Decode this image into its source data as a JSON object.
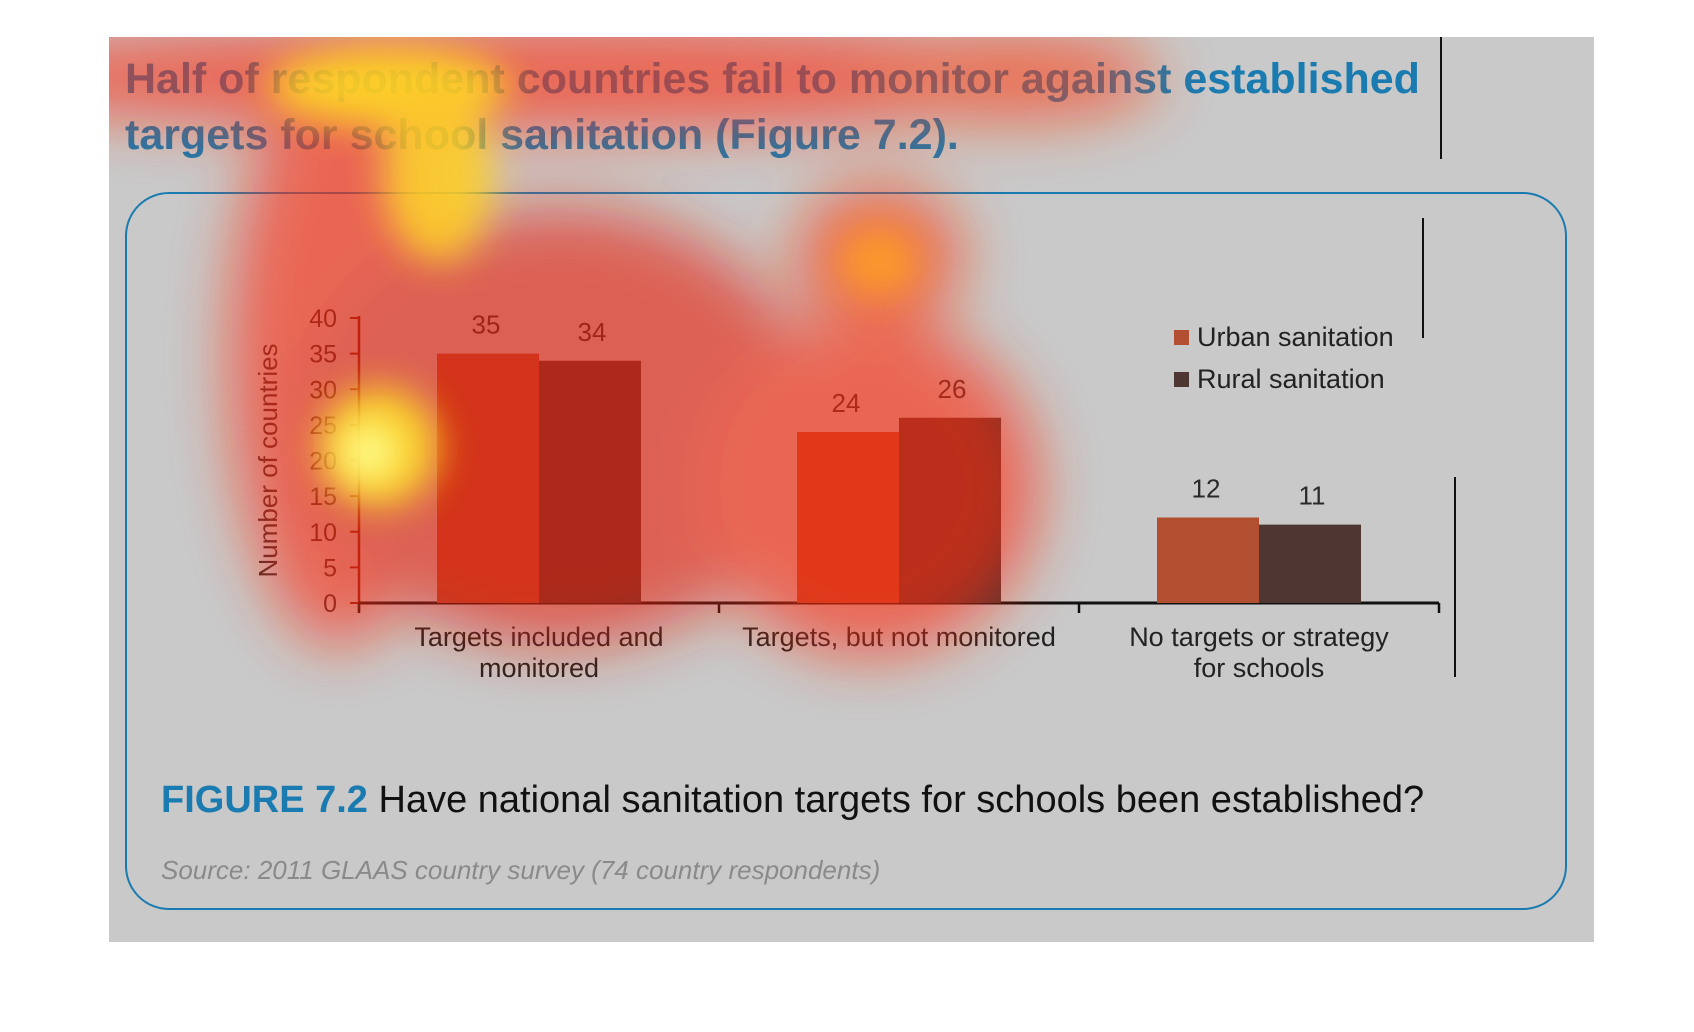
{
  "headline": "Half of respondent countries fail to monitor against established targets for school sanitation (Figure 7.2).",
  "caption": {
    "figure_label": "FIGURE 7.2",
    "text": "Have national sanitation targets for schools been established?"
  },
  "source": "Source: 2011 GLAAS country survey (74 country respondents)",
  "colors": {
    "accent": "#1a7bb0",
    "urban": "#b24f30",
    "rural": "#4e3733",
    "background": "#c9c9c9"
  },
  "chart_data": {
    "type": "bar",
    "title": "",
    "xlabel": "",
    "ylabel": "Number of countries",
    "ylim": [
      0,
      40
    ],
    "yticks": [
      0,
      5,
      10,
      15,
      20,
      25,
      30,
      35,
      40
    ],
    "categories": [
      [
        "Targets included and",
        "monitored"
      ],
      [
        "Targets, but not monitored"
      ],
      [
        "No targets or strategy",
        "for schools"
      ]
    ],
    "series": [
      {
        "name": "Urban sanitation",
        "values": [
          35,
          24,
          12
        ],
        "color": "#b24f30"
      },
      {
        "name": "Rural sanitation",
        "values": [
          34,
          26,
          11
        ],
        "color": "#4e3733"
      }
    ],
    "data_labels": true,
    "grid": false,
    "legend_position": "top-right"
  },
  "heatmap_overlay": {
    "present": true,
    "description_hotspots": [
      "headline",
      "y-axis",
      "first bar group",
      "top center"
    ]
  }
}
